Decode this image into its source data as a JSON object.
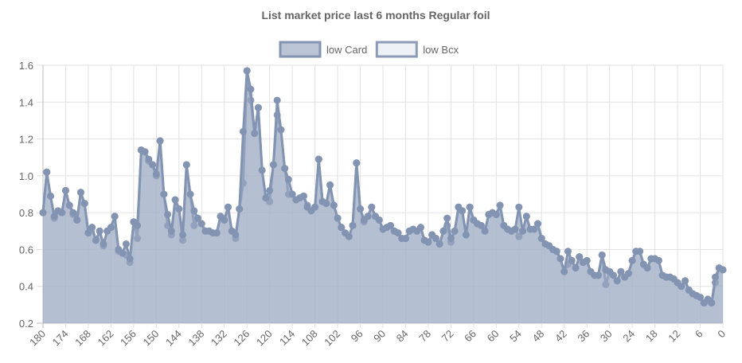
{
  "chart_data": {
    "type": "line",
    "title": "List market price last 6 months Regular foil",
    "x": [
      180,
      179,
      178,
      177,
      176,
      175,
      174,
      173,
      172,
      171,
      170,
      169,
      168,
      167,
      166,
      165,
      164,
      163,
      162,
      161,
      160,
      159,
      158,
      157,
      156,
      155,
      154,
      153,
      152,
      151,
      150,
      149,
      148,
      147,
      146,
      145,
      144,
      143,
      142,
      141,
      140,
      139,
      138,
      137,
      136,
      135,
      134,
      133,
      132,
      131,
      130,
      129,
      128,
      127,
      126,
      125,
      124,
      123,
      122,
      121,
      120,
      119,
      118,
      117,
      116,
      115,
      114,
      113,
      112,
      111,
      110,
      109,
      108,
      107,
      106,
      105,
      104,
      103,
      102,
      101,
      100,
      99,
      98,
      97,
      96,
      95,
      94,
      93,
      92,
      91,
      90,
      89,
      88,
      87,
      86,
      85,
      84,
      83,
      82,
      81,
      80,
      79,
      78,
      77,
      76,
      75,
      74,
      73,
      72,
      71,
      70,
      69,
      68,
      67,
      66,
      65,
      64,
      63,
      62,
      61,
      60,
      59,
      58,
      57,
      56,
      55,
      54,
      53,
      52,
      51,
      50,
      49,
      48,
      47,
      46,
      45,
      44,
      43,
      42,
      41,
      40,
      39,
      38,
      37,
      36,
      35,
      34,
      33,
      32,
      31,
      30,
      29,
      28,
      27,
      26,
      25,
      24,
      23,
      22,
      21,
      20,
      19,
      18,
      17,
      16,
      15,
      14,
      13,
      12,
      11,
      10,
      9,
      8,
      7,
      6,
      5,
      4,
      3,
      2,
      1,
      0
    ],
    "series": [
      {
        "name": "low Card",
        "color": "#8394b3",
        "fill": "rgba(150,165,190,0.65)",
        "values": [
          0.8,
          1.02,
          0.89,
          0.78,
          0.81,
          0.8,
          0.92,
          0.84,
          0.8,
          0.76,
          0.91,
          0.85,
          0.69,
          0.72,
          0.65,
          0.7,
          0.63,
          0.7,
          0.72,
          0.78,
          0.6,
          0.58,
          0.63,
          0.55,
          0.75,
          0.73,
          1.14,
          1.13,
          1.09,
          1.06,
          1.01,
          1.19,
          0.9,
          0.79,
          0.7,
          0.87,
          0.82,
          0.68,
          1.06,
          0.9,
          0.81,
          0.77,
          0.74,
          0.7,
          0.7,
          0.69,
          0.69,
          0.78,
          0.76,
          0.83,
          0.7,
          0.68,
          0.82,
          1.24,
          1.57,
          1.47,
          1.23,
          1.37,
          1.03,
          0.88,
          0.92,
          1.06,
          1.41,
          1.25,
          1.04,
          0.98,
          0.9,
          0.87,
          0.88,
          0.89,
          0.83,
          0.81,
          0.83,
          1.09,
          0.86,
          0.85,
          0.95,
          0.84,
          0.77,
          0.72,
          0.69,
          0.67,
          0.73,
          1.07,
          0.82,
          0.76,
          0.78,
          0.83,
          0.78,
          0.76,
          0.71,
          0.72,
          0.73,
          0.7,
          0.69,
          0.66,
          0.66,
          0.7,
          0.71,
          0.7,
          0.72,
          0.65,
          0.64,
          0.68,
          0.66,
          0.63,
          0.7,
          0.77,
          0.66,
          0.7,
          0.83,
          0.81,
          0.68,
          0.83,
          0.76,
          0.74,
          0.73,
          0.7,
          0.79,
          0.8,
          0.79,
          0.84,
          0.73,
          0.71,
          0.7,
          0.71,
          0.83,
          0.7,
          0.78,
          0.71,
          0.71,
          0.74,
          0.66,
          0.63,
          0.62,
          0.6,
          0.59,
          0.55,
          0.48,
          0.59,
          0.54,
          0.5,
          0.56,
          0.53,
          0.54,
          0.48,
          0.46,
          0.46,
          0.57,
          0.49,
          0.48,
          0.46,
          0.43,
          0.48,
          0.45,
          0.47,
          0.54,
          0.59,
          0.59,
          0.52,
          0.5,
          0.55,
          0.55,
          0.54,
          0.46,
          0.45,
          0.45,
          0.44,
          0.42,
          0.4,
          0.43,
          0.38,
          0.36,
          0.35,
          0.34,
          0.31,
          0.33,
          0.31,
          0.45,
          0.5,
          0.49
        ]
      },
      {
        "name": "low Bcx",
        "color": "#8d9bb8",
        "fill": "rgba(220,225,235,0.5)",
        "values": [
          0.8,
          1.02,
          0.89,
          0.77,
          0.81,
          0.8,
          0.92,
          0.84,
          0.79,
          0.76,
          0.91,
          0.85,
          0.69,
          0.72,
          0.65,
          0.7,
          0.62,
          0.7,
          0.72,
          0.78,
          0.59,
          0.58,
          0.57,
          0.53,
          0.75,
          0.66,
          1.14,
          1.13,
          1.08,
          1.06,
          1.0,
          1.19,
          0.9,
          0.73,
          0.68,
          0.87,
          0.82,
          0.65,
          1.06,
          0.9,
          0.73,
          0.77,
          0.74,
          0.7,
          0.7,
          0.69,
          0.69,
          0.78,
          0.76,
          0.83,
          0.7,
          0.66,
          0.82,
          0.96,
          1.57,
          1.41,
          1.23,
          1.37,
          1.03,
          0.88,
          0.86,
          1.06,
          1.33,
          1.25,
          1.04,
          0.9,
          0.9,
          0.87,
          0.88,
          0.89,
          0.84,
          0.81,
          0.83,
          1.09,
          0.86,
          0.85,
          0.95,
          0.84,
          0.77,
          0.72,
          0.69,
          0.67,
          0.73,
          1.07,
          0.82,
          0.75,
          0.78,
          0.83,
          0.78,
          0.76,
          0.71,
          0.72,
          0.73,
          0.7,
          0.69,
          0.66,
          0.66,
          0.7,
          0.71,
          0.7,
          0.72,
          0.65,
          0.64,
          0.68,
          0.66,
          0.63,
          0.7,
          0.73,
          0.64,
          0.7,
          0.83,
          0.81,
          0.68,
          0.83,
          0.76,
          0.74,
          0.73,
          0.7,
          0.79,
          0.8,
          0.79,
          0.84,
          0.73,
          0.71,
          0.7,
          0.71,
          0.67,
          0.7,
          0.78,
          0.71,
          0.71,
          0.74,
          0.66,
          0.63,
          0.62,
          0.6,
          0.59,
          0.55,
          0.48,
          0.52,
          0.54,
          0.5,
          0.56,
          0.53,
          0.54,
          0.48,
          0.46,
          0.46,
          0.57,
          0.41,
          0.48,
          0.46,
          0.43,
          0.48,
          0.45,
          0.47,
          0.54,
          0.59,
          0.59,
          0.52,
          0.5,
          0.55,
          0.55,
          0.54,
          0.46,
          0.45,
          0.45,
          0.44,
          0.42,
          0.4,
          0.43,
          0.38,
          0.36,
          0.35,
          0.34,
          0.31,
          0.33,
          0.31,
          0.42,
          0.5,
          0.49
        ]
      }
    ],
    "xlim": [
      180,
      0
    ],
    "xticks": [
      180,
      174,
      168,
      162,
      156,
      150,
      144,
      138,
      132,
      126,
      120,
      114,
      108,
      102,
      96,
      90,
      84,
      78,
      72,
      66,
      60,
      54,
      48,
      42,
      36,
      30,
      24,
      18,
      12,
      6,
      0
    ],
    "ylim": [
      0.2,
      1.6
    ],
    "yticks": [
      {
        "value": 0.2,
        "label": "0.2"
      },
      {
        "value": 0.4,
        "label": "0.4"
      },
      {
        "value": 0.6,
        "label": "0.6"
      },
      {
        "value": 0.8,
        "label": "0.8"
      },
      {
        "value": 1.0,
        "label": "1.0"
      },
      {
        "value": 1.2,
        "label": "1.2"
      },
      {
        "value": 1.4,
        "label": "1.4"
      },
      {
        "value": 1.6,
        "label": "1.6"
      }
    ],
    "grid": true,
    "legend": "top"
  }
}
